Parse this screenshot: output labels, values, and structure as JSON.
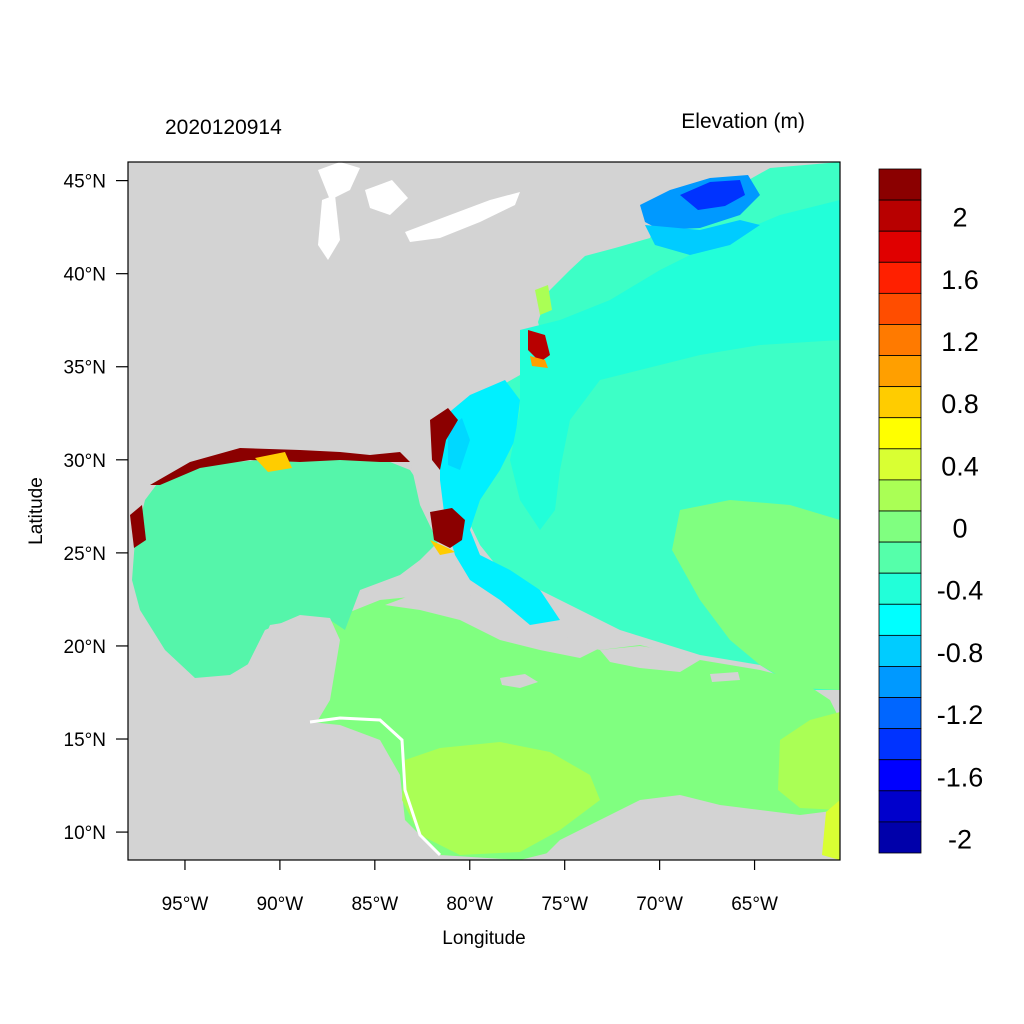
{
  "figure": {
    "date_stamp": "2020120914",
    "variable_title": "Elevation (m)",
    "xlabel": "Longitude",
    "ylabel": "Latitude"
  },
  "axes": {
    "lon_range": [
      -98,
      -60.5
    ],
    "lat_range": [
      8.5,
      46
    ],
    "x_ticks": [
      {
        "value": -95,
        "label": "95°W"
      },
      {
        "value": -90,
        "label": "90°W"
      },
      {
        "value": -85,
        "label": "85°W"
      },
      {
        "value": -80,
        "label": "80°W"
      },
      {
        "value": -75,
        "label": "75°W"
      },
      {
        "value": -70,
        "label": "70°W"
      },
      {
        "value": -65,
        "label": "65°W"
      }
    ],
    "y_ticks": [
      {
        "value": 45,
        "label": "45°N"
      },
      {
        "value": 40,
        "label": "40°N"
      },
      {
        "value": 35,
        "label": "35°N"
      },
      {
        "value": 30,
        "label": "30°N"
      },
      {
        "value": 25,
        "label": "25°N"
      },
      {
        "value": 20,
        "label": "20°N"
      },
      {
        "value": 15,
        "label": "15°N"
      },
      {
        "value": 10,
        "label": "10°N"
      }
    ]
  },
  "colorbar": {
    "colors_top_to_bottom": [
      "#8b0000",
      "#b80000",
      "#e00000",
      "#ff2000",
      "#ff4d00",
      "#ff7a00",
      "#ff9f00",
      "#ffcc00",
      "#ffff00",
      "#d9ff33",
      "#aaff55",
      "#80ff80",
      "#55ffaa",
      "#22ffd9",
      "#00ffff",
      "#00ccff",
      "#0099ff",
      "#0066ff",
      "#0033ff",
      "#0000ff",
      "#0000cc",
      "#0000aa"
    ],
    "labels": [
      {
        "text": "2",
        "boundary": 2
      },
      {
        "text": "1.6",
        "boundary": 4
      },
      {
        "text": "1.2",
        "boundary": 6
      },
      {
        "text": "0.8",
        "boundary": 8
      },
      {
        "text": "0.4",
        "boundary": 10
      },
      {
        "text": "0",
        "boundary": 12
      },
      {
        "text": "-0.4",
        "boundary": 14
      },
      {
        "text": "-0.8",
        "boundary": 16
      },
      {
        "text": "-1.2",
        "boundary": 18
      },
      {
        "text": "-1.6",
        "boundary": 20
      },
      {
        "text": "-2",
        "boundary": 22
      }
    ]
  },
  "colors": {
    "land": "#d3d3d3",
    "ocean_base": "#3dffc6"
  }
}
